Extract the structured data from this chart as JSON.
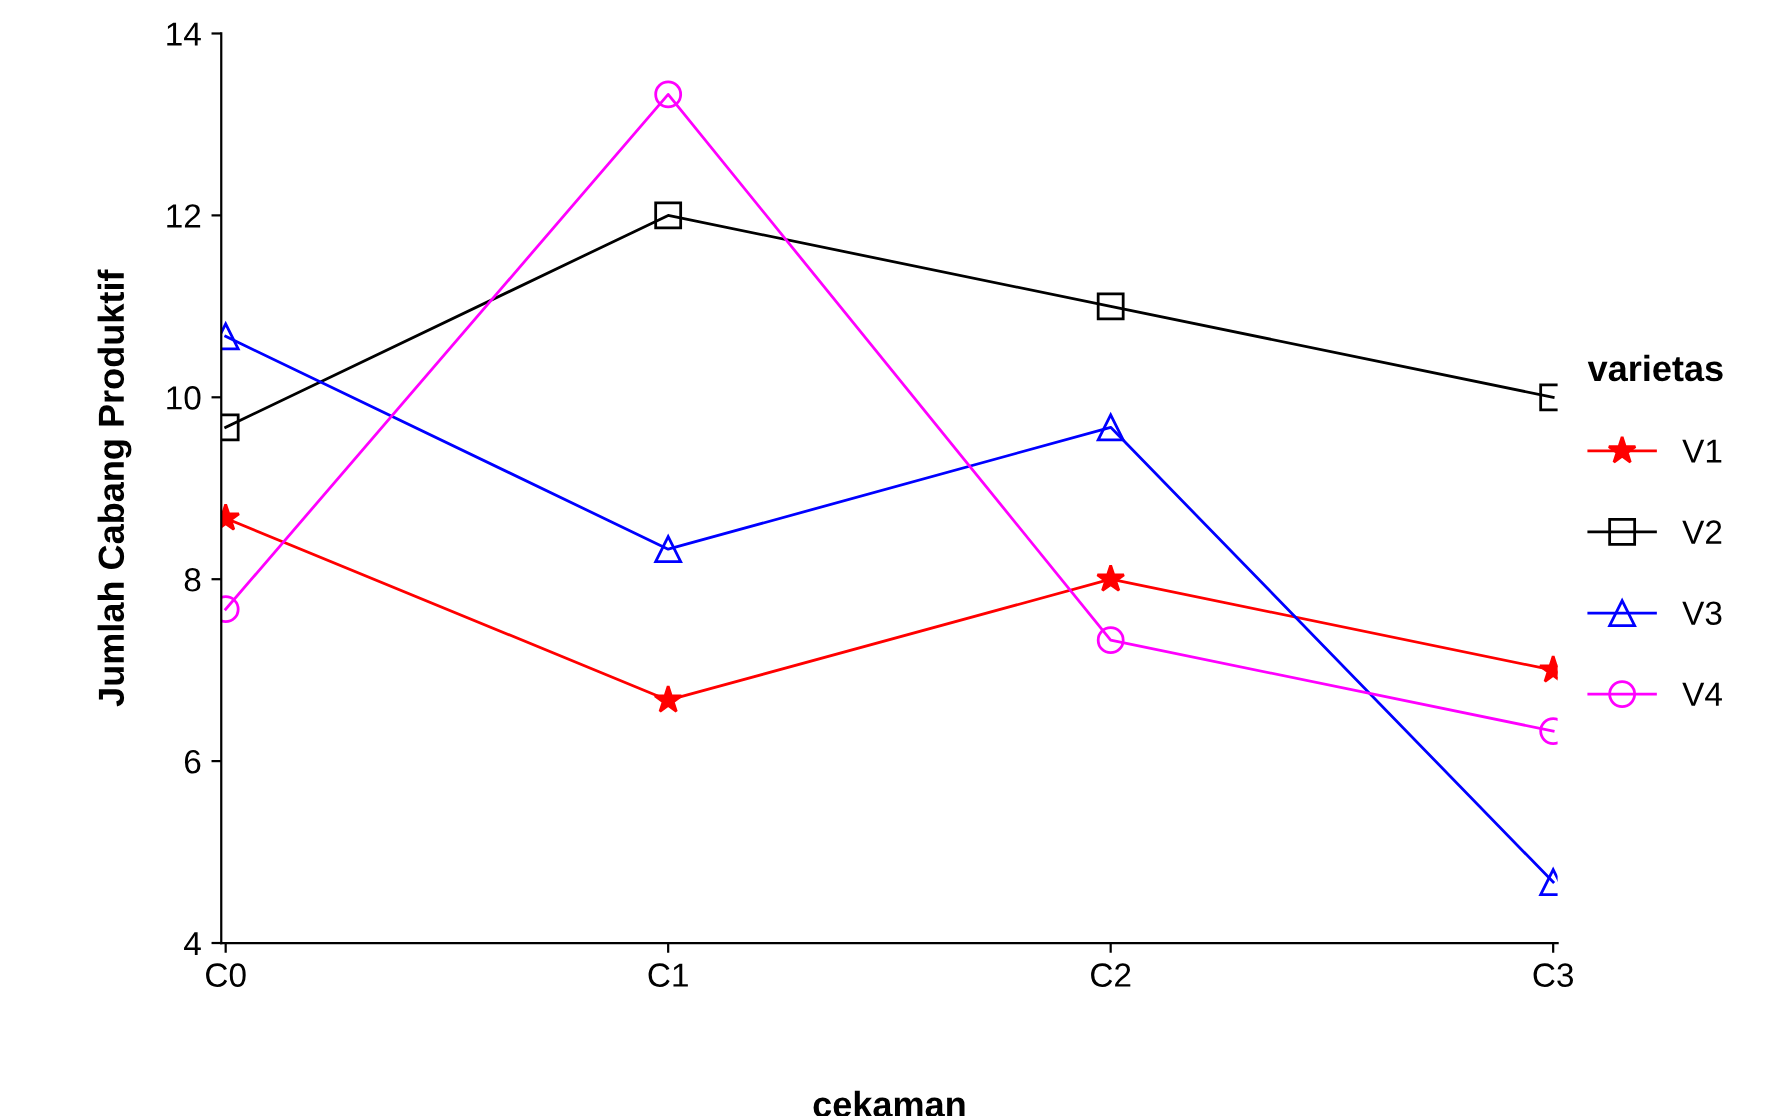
{
  "chart_data": {
    "type": "line",
    "xlabel": "cekaman",
    "ylabel": "Jumlah Cabang Produktif",
    "legend_title": "varietas",
    "categories": [
      "C0",
      "C1",
      "C2",
      "C3"
    ],
    "series": [
      {
        "name": "V1",
        "color": "#ff0000",
        "marker": "star",
        "values": [
          8.67,
          6.67,
          8,
          7
        ]
      },
      {
        "name": "V2",
        "color": "#000000",
        "marker": "square",
        "values": [
          9.67,
          12,
          11,
          10
        ]
      },
      {
        "name": "V3",
        "color": "#0000ff",
        "marker": "triangle",
        "values": [
          10.67,
          8.33,
          9.67,
          4.67
        ]
      },
      {
        "name": "V4",
        "color": "#ff00ff",
        "marker": "circle",
        "values": [
          7.67,
          13.33,
          7.33,
          6.33
        ]
      }
    ],
    "ylim": [
      4,
      14
    ],
    "yticks": [
      4,
      6,
      8,
      10,
      12,
      14
    ],
    "grid": false,
    "legend": "right",
    "line_style": "solid"
  }
}
